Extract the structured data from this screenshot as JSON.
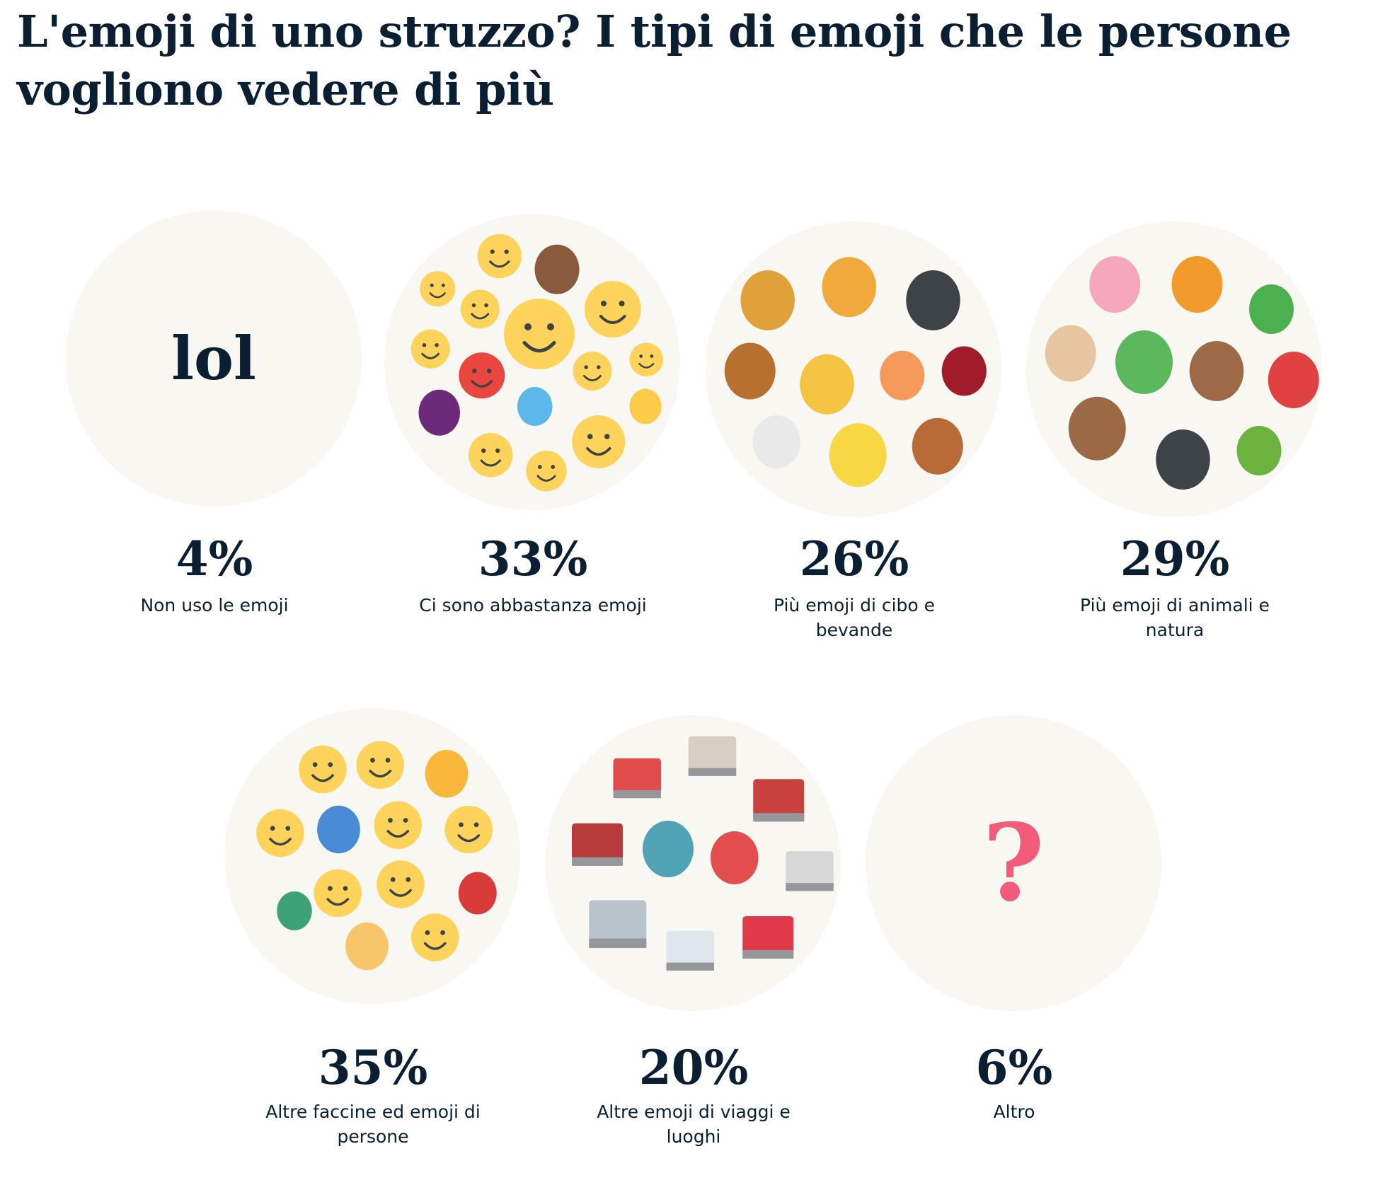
{
  "title": "L'emoji di uno struzzo? I tipi di emoji che le persone vogliono vedere di più",
  "colors": {
    "text": "#0b1f33",
    "circle_bg": "#f8f7f2",
    "question_mark": "#f25c7a"
  },
  "chart_data": {
    "type": "pictogram",
    "title": "L'emoji di uno struzzo? I tipi di emoji che le persone vogliono vedere di più",
    "categories": [
      "Non uso le emoji",
      "Ci sono abbastanza emoji",
      "Più emoji di cibo e bevande",
      "Più emoji di animali e natura",
      "Altre faccine ed emoji di persone",
      "Altre emoji di viaggi e luoghi",
      "Altro"
    ],
    "values": [
      4,
      33,
      26,
      29,
      35,
      20,
      6
    ],
    "unit": "%"
  },
  "items": [
    {
      "percent": "4%",
      "label": "Non uso le emoji",
      "circle_text": "lol"
    },
    {
      "percent": "33%",
      "label": "Ci sono abbastanza emoji",
      "icons": [
        "smiling-blush-emoji",
        "poop-emoji",
        "kiss-emoji",
        "sunglasses-emoji",
        "smile-emoji",
        "joy-emoji",
        "joy-small-emoji",
        "angry-emoji",
        "nerd-emoji",
        "frown-emoji",
        "eggplant-emoji",
        "droplets-emoji",
        "thumbs-up-emoji",
        "heart-eyes-emoji",
        "scream-emoji",
        "grimace-emoji"
      ]
    },
    {
      "percent": "26%",
      "label": "Più emoji di cibo e bevande",
      "icons": [
        "pineapple-emoji",
        "pizza-emoji",
        "stew-pot-emoji",
        "burger-emoji",
        "beer-mugs-emoji",
        "peach-emoji",
        "wine-glass-emoji",
        "coffee-emoji",
        "cheese-emoji",
        "chicken-leg-emoji"
      ]
    },
    {
      "percent": "29%",
      "label": "Più emoji di animali e natura",
      "icons": [
        "pig-emoji",
        "tiger-emoji",
        "shamrock-emoji",
        "pug-emoji",
        "palm-tree-emoji",
        "bear-emoji",
        "crab-emoji",
        "monkey-emoji",
        "cat-emoji",
        "cactus-emoji"
      ]
    },
    {
      "percent": "35%",
      "label": "Altre faccine ed emoji di persone",
      "icons": [
        "joy-emoji",
        "upside-down-face-emoji",
        "woman-emoji",
        "grin-emoji",
        "bowing-person-emoji",
        "smile-emoji",
        "wink-tongue-emoji",
        "walking-person-emoji",
        "grin-emoji",
        "wink-emoji",
        "superhero-emoji",
        "man-emoji",
        "blush-emoji"
      ]
    },
    {
      "percent": "20%",
      "label": "Altre emoji di viaggi e luoghi",
      "icons": [
        "school-emoji",
        "church-emoji",
        "japanese-castle-emoji",
        "synagogue-emoji",
        "statue-of-liberty-emoji",
        "tokyo-tower-emoji",
        "shop-emoji",
        "classical-building-emoji",
        "hospital-emoji",
        "torii-gate-emoji"
      ]
    },
    {
      "percent": "6%",
      "label": "Altro",
      "circle_text": "?"
    }
  ]
}
